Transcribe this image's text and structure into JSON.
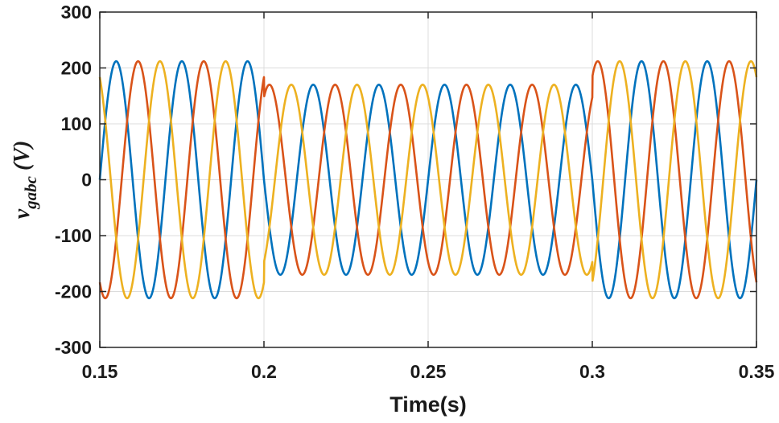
{
  "chart_data": {
    "type": "line",
    "title": "",
    "xlabel": "Time(s)",
    "ylabel": {
      "main": "v",
      "subscript": "gabc",
      "unit": " (V)"
    },
    "xlim": [
      0.15,
      0.35
    ],
    "ylim": [
      -300,
      300
    ],
    "xticks": [
      0.15,
      0.2,
      0.25,
      0.3,
      0.35
    ],
    "xtick_labels": [
      "0.15",
      "0.2",
      "0.25",
      "0.3",
      "0.35"
    ],
    "yticks": [
      -300,
      -200,
      -100,
      0,
      100,
      200,
      300
    ],
    "ytick_labels": [
      "-300",
      "-200",
      "-100",
      "0",
      "100",
      "200",
      "300"
    ],
    "grid": true,
    "legend": "none",
    "frequency_hz": 50,
    "segments": [
      {
        "t_start": 0.15,
        "t_end": 0.2,
        "amplitude": 212
      },
      {
        "t_start": 0.2,
        "t_end": 0.3,
        "amplitude": 170
      },
      {
        "t_start": 0.3,
        "t_end": 0.35,
        "amplitude": 212
      }
    ],
    "series": [
      {
        "phase_deg": 180,
        "color": "#0072BD"
      },
      {
        "phase_deg": 60,
        "color": "#D95319"
      },
      {
        "phase_deg": -60,
        "color": "#EDB120"
      }
    ]
  }
}
